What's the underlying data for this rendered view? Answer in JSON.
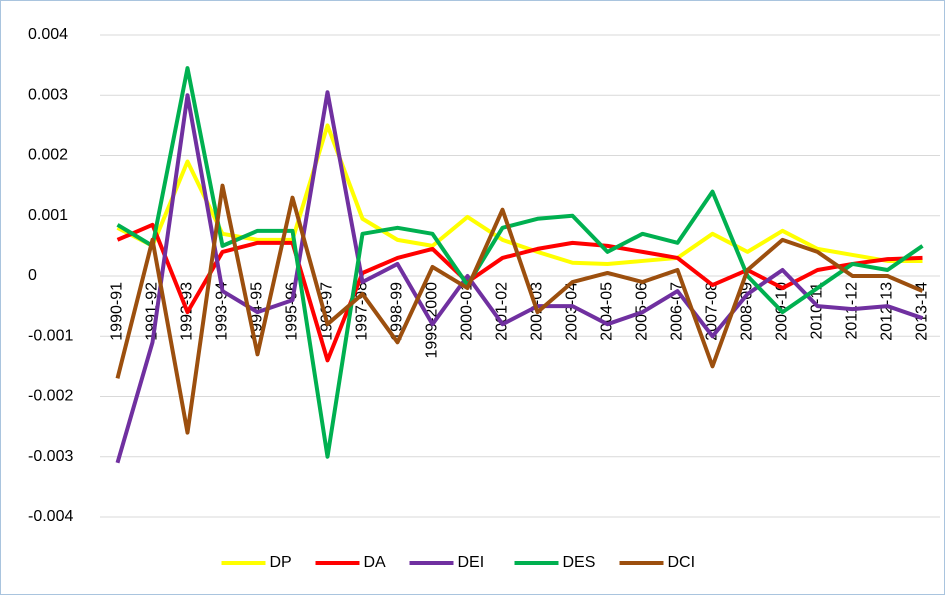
{
  "chart_data": {
    "type": "line",
    "categories": [
      "1990-91",
      "1991-92",
      "1992-93",
      "1993-94",
      "1994-95",
      "1995-96",
      "1996-97",
      "1997-98",
      "1998-99",
      "1999-2000",
      "2000-01",
      "2001-02",
      "2002-03",
      "2003-04",
      "2004-05",
      "2005-06",
      "2006-07",
      "2007-08",
      "2008-09",
      "2009-10",
      "2010-11",
      "2011-12",
      "2012-13",
      "2013-14"
    ],
    "series": [
      {
        "name": "DP",
        "color": "#ffff00",
        "values": [
          0.0008,
          0.0005,
          0.0019,
          0.0007,
          0.0006,
          0.0006,
          0.0025,
          0.00095,
          0.0006,
          0.0005,
          0.00098,
          0.0006,
          0.0004,
          0.00022,
          0.0002,
          0.00025,
          0.0003,
          0.0007,
          0.0004,
          0.00075,
          0.00045,
          0.00035,
          0.00025,
          0.00025
        ]
      },
      {
        "name": "DA",
        "color": "#ff0000",
        "values": [
          0.0006,
          0.00085,
          -0.0006,
          0.0004,
          0.00055,
          0.00055,
          -0.0014,
          5e-05,
          0.0003,
          0.00045,
          -0.0001,
          0.0003,
          0.00045,
          0.00055,
          0.0005,
          0.0004,
          0.0003,
          -0.00015,
          0.0001,
          -0.0002,
          0.0001,
          0.0002,
          0.00028,
          0.0003
        ]
      },
      {
        "name": "DEI",
        "color": "#7030a0",
        "values": [
          -0.0031,
          -0.0011,
          0.003,
          -0.00025,
          -0.0006,
          -0.0004,
          0.00305,
          -0.0001,
          0.0002,
          -0.0008,
          0,
          -0.0008,
          -0.0005,
          -0.0005,
          -0.0008,
          -0.0006,
          -0.00025,
          -0.001,
          -0.0003,
          0.0001,
          -0.0005,
          -0.00055,
          -0.0005,
          -0.0007
        ]
      },
      {
        "name": "DES",
        "color": "#00b050",
        "values": [
          0.00085,
          0.0005,
          0.00345,
          0.0005,
          0.00075,
          0.00075,
          -0.003,
          0.0007,
          0.0008,
          0.0007,
          -0.00015,
          0.0008,
          0.00095,
          0.001,
          0.0004,
          0.0007,
          0.00055,
          0.0014,
          0,
          -0.0006,
          -0.0002,
          0.0002,
          0.0001,
          0.0005
        ]
      },
      {
        "name": "DCI",
        "color": "#9c4f0e",
        "values": [
          -0.0017,
          0.0006,
          -0.0026,
          0.0015,
          -0.0013,
          0.0013,
          -0.0008,
          -0.0003,
          -0.0011,
          0.00015,
          -0.0002,
          0.0011,
          -0.0006,
          -0.0001,
          5e-05,
          -0.0001,
          0.0001,
          -0.0015,
          0.0001,
          0.0006,
          0.0004,
          0,
          0,
          -0.00025
        ]
      }
    ],
    "ylim": [
      -0.004,
      0.004
    ],
    "yticks": [
      -0.004,
      -0.003,
      -0.002,
      -0.001,
      0,
      0.001,
      0.002,
      0.003,
      0.004
    ],
    "grid": true,
    "legend": "bottom"
  }
}
